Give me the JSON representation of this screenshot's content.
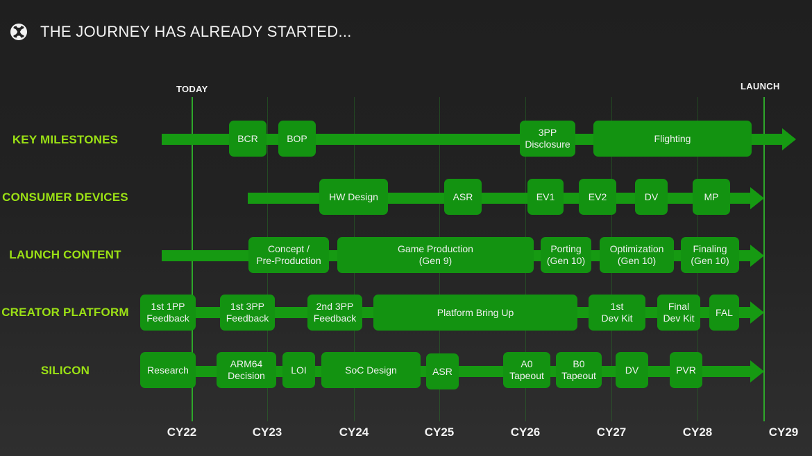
{
  "title": "THE JOURNEY HAS ALREADY STARTED...",
  "markers": {
    "today": "TODAY",
    "launch": "LAUNCH"
  },
  "years": [
    "CY22",
    "CY23",
    "CY24",
    "CY25",
    "CY26",
    "CY27",
    "CY28",
    "CY29"
  ],
  "rows": [
    {
      "label": "KEY MILESTONES",
      "boxes": [
        "BCR",
        "BOP",
        "3PP\nDisclosure",
        "Flighting"
      ]
    },
    {
      "label": "CONSUMER DEVICES",
      "boxes": [
        "HW Design",
        "ASR",
        "EV1",
        "EV2",
        "DV",
        "MP"
      ]
    },
    {
      "label": "LAUNCH CONTENT",
      "boxes": [
        "Concept /\nPre-Production",
        "Game Production\n(Gen 9)",
        "Porting\n(Gen 10)",
        "Optimization\n(Gen 10)",
        "Finaling\n(Gen 10)"
      ]
    },
    {
      "label": "CREATOR PLATFORM",
      "boxes": [
        "1st 1PP\nFeedback",
        "1st 3PP\nFeedback",
        "2nd 3PP\nFeedback",
        "Platform Bring Up",
        "1st\nDev Kit",
        "Final\nDev Kit",
        "FAL"
      ]
    },
    {
      "label": "SILICON",
      "boxes": [
        "Research",
        "ARM64\nDecision",
        "LOI",
        "SoC Design",
        "ASR",
        "A0\nTapeout",
        "B0\nTapeout",
        "DV",
        "PVR"
      ]
    }
  ],
  "colors": {
    "accent": "#169a12",
    "label": "#9be015"
  }
}
